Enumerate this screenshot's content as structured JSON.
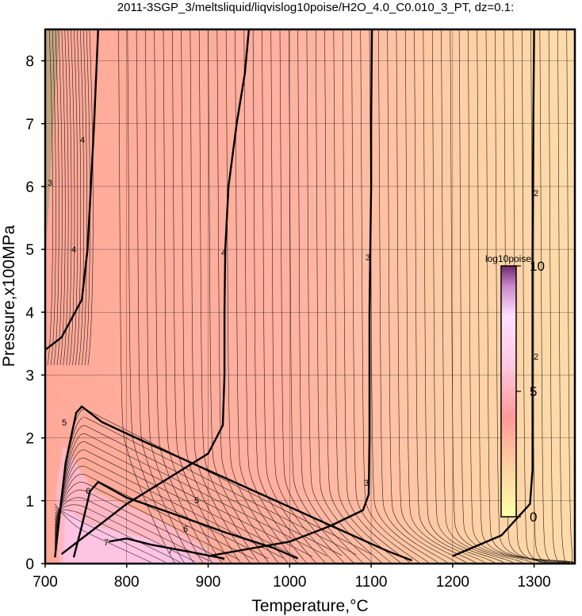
{
  "chart_data": {
    "type": "heatmap",
    "title": "2011-3SGP_3/meltsliquid/liqvislog10poise/H2O_4.0_C0.010_3_PT, dz=0.1:",
    "xlabel": "Temperature,°C",
    "ylabel": "Pressure,x100MPa",
    "xlim": [
      700,
      1350
    ],
    "ylim": [
      0,
      8.5
    ],
    "x_ticks": [
      "700",
      "800",
      "900",
      "1000",
      "1100",
      "1200",
      "1300"
    ],
    "y_ticks": [
      "0",
      "1",
      "2",
      "3",
      "4",
      "5",
      "6",
      "7",
      "8"
    ],
    "grid": true,
    "colorbar": {
      "title": "log10poise",
      "range": [
        0,
        10
      ],
      "tick_labels": [
        "0",
        "5",
        "10"
      ],
      "colors": [
        "#ffffa8",
        "#ff9999",
        "#ffccff",
        "#8b3a8b"
      ]
    },
    "major_contours": [
      {
        "level": 4,
        "label": "4",
        "points": [
          [
            700,
            3.4
          ],
          [
            720,
            3.6
          ],
          [
            745,
            4.2
          ],
          [
            752,
            5.0
          ],
          [
            756,
            6.0
          ],
          [
            760,
            7.0
          ],
          [
            762,
            7.6
          ],
          [
            765,
            8.5
          ]
        ]
      },
      {
        "level": 4,
        "label": "4",
        "points": [
          [
            720,
            0.15
          ],
          [
            760,
            0.55
          ],
          [
            800,
            0.95
          ],
          [
            850,
            1.35
          ],
          [
            900,
            1.75
          ],
          [
            918,
            2.2
          ],
          [
            920,
            3.0
          ],
          [
            920,
            4.0
          ],
          [
            921,
            5.0
          ],
          [
            925,
            6.0
          ],
          [
            935,
            7.0
          ],
          [
            945,
            7.8
          ],
          [
            950,
            8.5
          ]
        ]
      },
      {
        "level": 3,
        "label": "3",
        "points": [
          [
            900,
            0.12
          ],
          [
            1000,
            0.35
          ],
          [
            1050,
            0.6
          ],
          [
            1090,
            0.85
          ],
          [
            1097,
            1.1
          ],
          [
            1098,
            2.0
          ],
          [
            1098,
            3.0
          ],
          [
            1098,
            4.0
          ],
          [
            1099,
            5.0
          ],
          [
            1100,
            6.0
          ],
          [
            1100,
            7.0
          ],
          [
            1101,
            8.5
          ]
        ]
      },
      {
        "level": 2,
        "label": "2",
        "points": [
          [
            1200,
            0.12
          ],
          [
            1260,
            0.45
          ],
          [
            1295,
            0.95
          ],
          [
            1298,
            1.5
          ],
          [
            1298,
            3.0
          ],
          [
            1298,
            5.0
          ],
          [
            1299,
            7.0
          ],
          [
            1300,
            8.5
          ]
        ]
      },
      {
        "level": 5,
        "label": "5",
        "points": [
          [
            712,
            0.1
          ],
          [
            718,
            0.8
          ],
          [
            725,
            1.6
          ],
          [
            738,
            2.4
          ],
          [
            745,
            2.5
          ],
          [
            770,
            2.25
          ],
          [
            820,
            1.95
          ],
          [
            880,
            1.6
          ],
          [
            940,
            1.25
          ],
          [
            1000,
            0.9
          ],
          [
            1060,
            0.55
          ],
          [
            1120,
            0.2
          ],
          [
            1150,
            0.05
          ]
        ]
      },
      {
        "level": 6,
        "label": "6",
        "points": [
          [
            735,
            0.1
          ],
          [
            745,
            0.6
          ],
          [
            755,
            1.15
          ],
          [
            765,
            1.3
          ],
          [
            800,
            1.05
          ],
          [
            860,
            0.78
          ],
          [
            920,
            0.5
          ],
          [
            980,
            0.25
          ],
          [
            1010,
            0.08
          ]
        ]
      },
      {
        "level": 7,
        "label": "7",
        "points": [
          [
            778,
            0.35
          ],
          [
            800,
            0.4
          ],
          [
            830,
            0.3
          ],
          [
            880,
            0.18
          ],
          [
            920,
            0.08
          ]
        ]
      }
    ],
    "labels": {
      "lbl4_a": "4",
      "lbl4_b": "4",
      "lbl4_c": "4",
      "lbl3_a": "3",
      "lbl3_b": "3",
      "lbl3_c": "3",
      "lbl2_a": "2",
      "lbl2_b": "2",
      "lbl5_a": "5",
      "lbl5_b": "5",
      "lbl6_a": "6",
      "lbl6_b": "6",
      "lbl7_a": "7",
      "lbl7_b": "7"
    }
  }
}
